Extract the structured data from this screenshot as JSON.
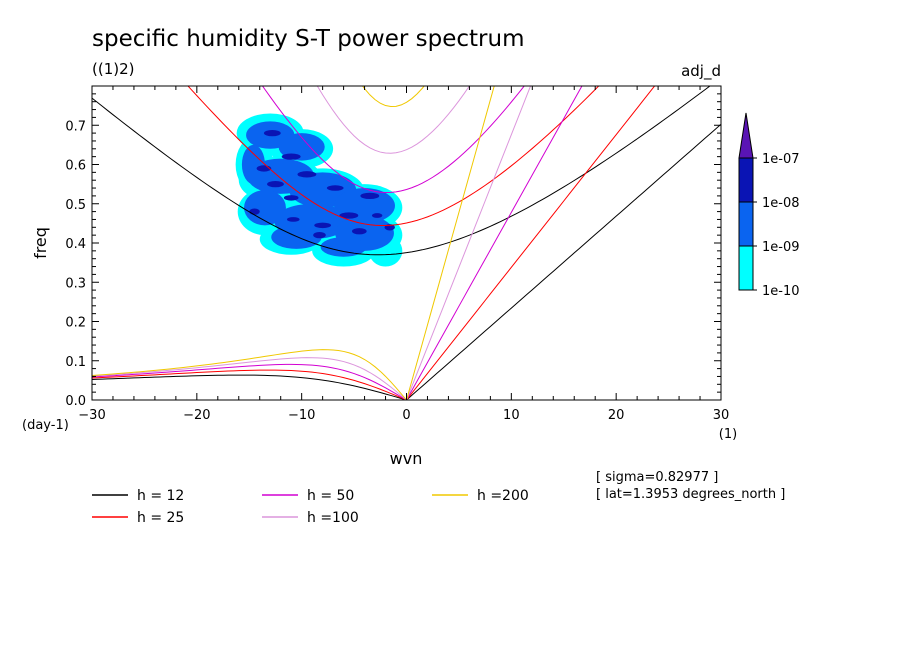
{
  "chart_data": {
    "type": "contour",
    "title": "specific humidity S-T power spectrum",
    "subtitle_left": "((1)2)",
    "subtitle_right": "adj_d",
    "xlabel": "wvn",
    "ylabel": "freq",
    "x_unit": "(1)",
    "y_unit": "(day-1)",
    "xlim": [
      -30,
      30
    ],
    "ylim": [
      0,
      0.8
    ],
    "x_ticks": [
      {
        "label": "−30",
        "value": -30
      },
      {
        "label": "−20",
        "value": -20
      },
      {
        "label": "−10",
        "value": -10
      },
      {
        "label": "0",
        "value": 0
      },
      {
        "label": "10",
        "value": 10
      },
      {
        "label": "20",
        "value": 20
      },
      {
        "label": "30",
        "value": 30
      }
    ],
    "y_ticks": [
      {
        "label": "0.0",
        "value": 0.0
      },
      {
        "label": "0.1",
        "value": 0.1
      },
      {
        "label": "0.2",
        "value": 0.2
      },
      {
        "label": "0.3",
        "value": 0.3
      },
      {
        "label": "0.4",
        "value": 0.4
      },
      {
        "label": "0.5",
        "value": 0.5
      },
      {
        "label": "0.6",
        "value": 0.6
      },
      {
        "label": "0.7",
        "value": 0.7
      }
    ],
    "colorbar": {
      "levels": [
        "1e-10",
        "1e-09",
        "1e-08",
        "1e-07"
      ],
      "colors": [
        "#00ffff",
        "#0a64f0",
        "#0a14b4",
        "#5a14b4"
      ]
    },
    "shaded_region": {
      "x_range": [
        -16,
        -0.5
      ],
      "freq_range": [
        0.35,
        0.73
      ],
      "levels_present": [
        "1e-10",
        "1e-09",
        "1e-08"
      ]
    },
    "dispersion_curves": [
      {
        "name": "h = 12",
        "h": 12,
        "color": "#000000"
      },
      {
        "name": "h = 25",
        "h": 25,
        "color": "#ff0000"
      },
      {
        "name": "h = 50",
        "h": 50,
        "color": "#d200d2"
      },
      {
        "name": "h =100",
        "h": 100,
        "color": "#dc96dc"
      },
      {
        "name": "h =200",
        "h": 200,
        "color": "#f0c800"
      }
    ],
    "annotations": [
      "[ sigma=0.82977 ]",
      "[ lat=1.3953 degrees_north ]"
    ]
  }
}
